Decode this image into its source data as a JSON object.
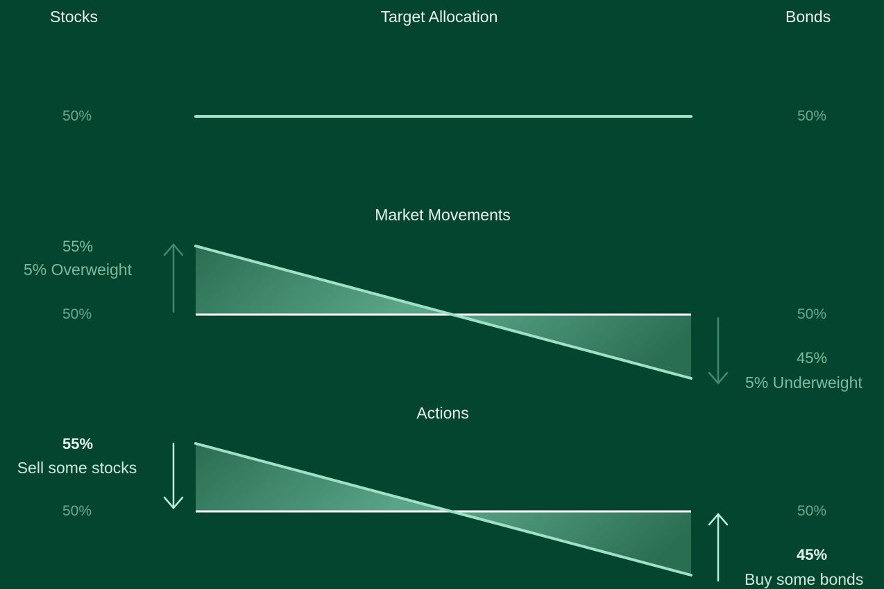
{
  "header": {
    "left": "Stocks",
    "center": "Target Allocation",
    "right": "Bonds"
  },
  "target": {
    "stocks_pct": "50%",
    "bonds_pct": "50%"
  },
  "market": {
    "title": "Market Movements",
    "stocks_current": "55%",
    "stocks_note": "5% Overweight",
    "stocks_target": "50%",
    "bonds_target": "50%",
    "bonds_current": "45%",
    "bonds_note": "5% Underweight"
  },
  "actions": {
    "title": "Actions",
    "stocks_current": "55%",
    "stocks_note": "Sell some stocks",
    "stocks_target": "50%",
    "bonds_target": "50%",
    "bonds_current": "45%",
    "bonds_note": "Buy some bonds"
  },
  "colors": {
    "background": "#03452e",
    "line_mint": "#9fe0c7",
    "line_white": "#ffffff",
    "arrow_dim": "#3f8a6c",
    "arrow_bright": "#bfeede"
  },
  "icons": [
    "arrow-up-icon",
    "arrow-down-icon"
  ]
}
